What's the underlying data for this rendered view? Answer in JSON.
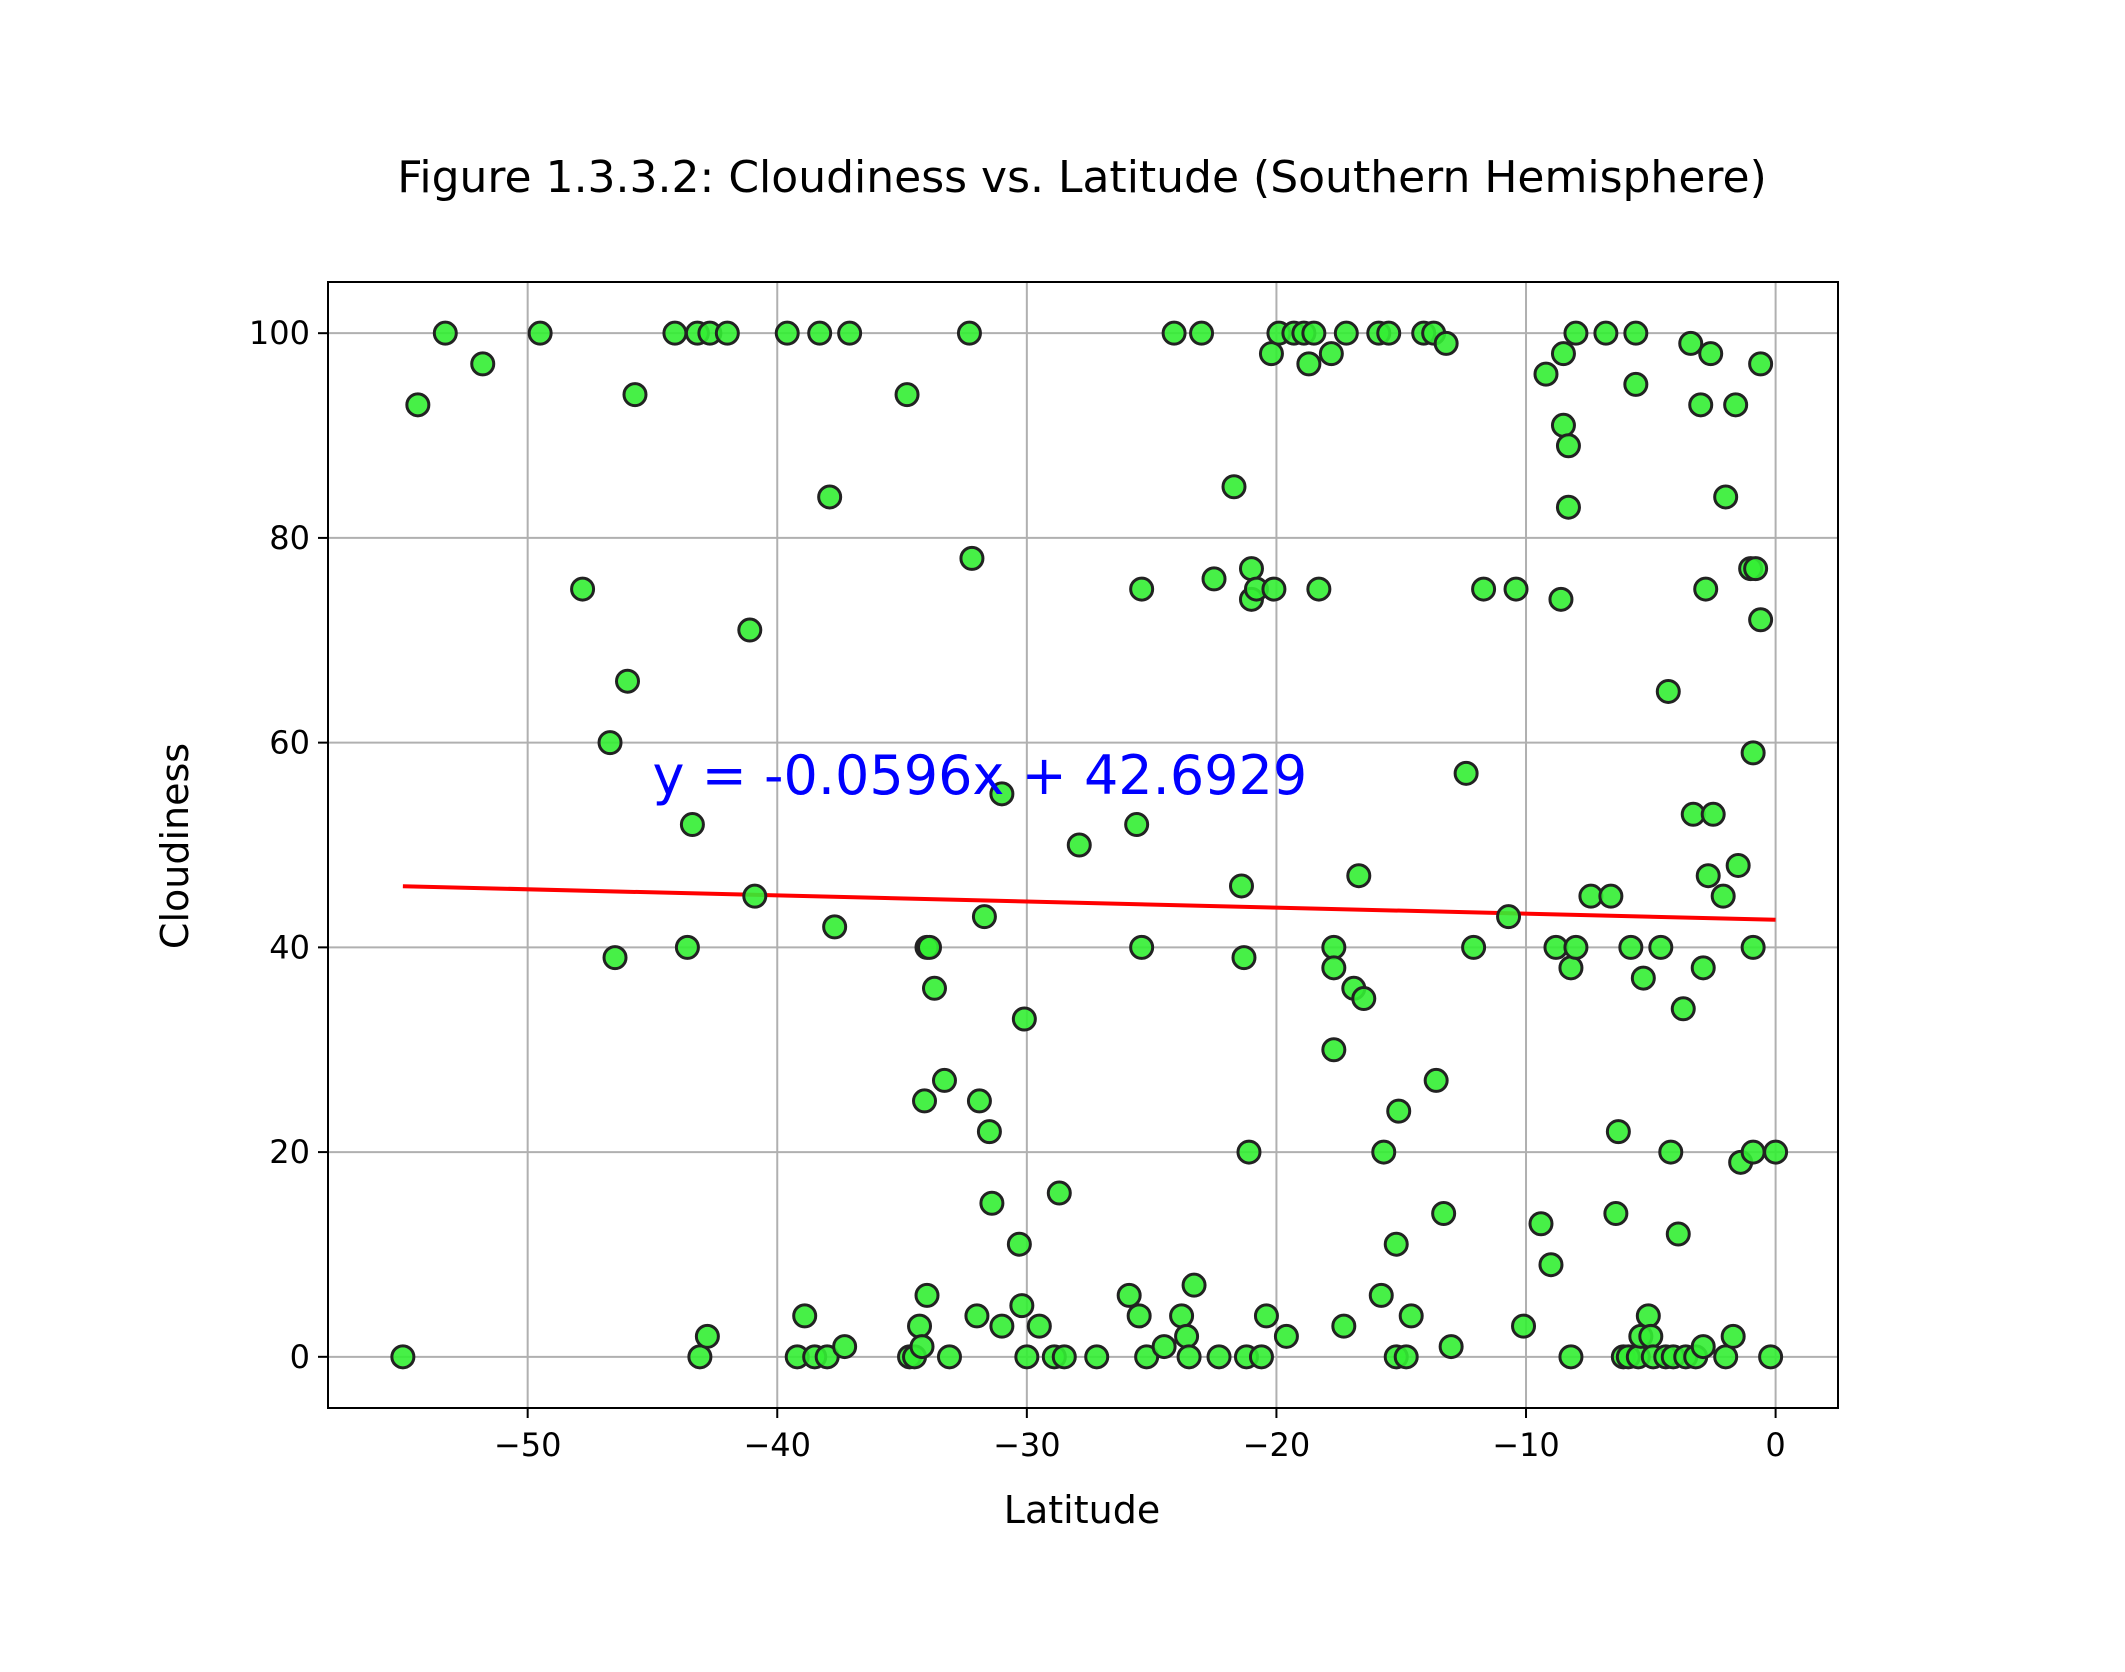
{
  "chart_data": {
    "type": "scatter",
    "title": "Figure 1.3.3.2: Cloudiness vs. Latitude (Southern Hemisphere)",
    "xlabel": "Latitude",
    "ylabel": "Cloudiness",
    "xlim": [
      -58,
      2.5
    ],
    "ylim": [
      -5,
      105
    ],
    "xticks": [
      -50,
      -40,
      -30,
      -20,
      -10,
      0
    ],
    "yticks": [
      0,
      20,
      40,
      60,
      80,
      100
    ],
    "xtick_labels": [
      "−50",
      "−40",
      "−30",
      "−20",
      "−10",
      "0"
    ],
    "ytick_labels": [
      "0",
      "20",
      "40",
      "60",
      "80",
      "100"
    ],
    "grid": true,
    "marker_color": "#33ee33",
    "marker_edge_color": "#222222",
    "regression": {
      "equation": "y = -0.0596x + 42.6929",
      "slope": -0.0596,
      "intercept": 42.6929,
      "x_range": [
        -55,
        0
      ],
      "line_color": "#ff0000",
      "text_color": "#0000ff",
      "text_anchor": [
        -45,
        55
      ]
    },
    "points": [
      [
        -55,
        0
      ],
      [
        -54.4,
        93
      ],
      [
        -53.3,
        100
      ],
      [
        -51.8,
        97
      ],
      [
        -49.5,
        100
      ],
      [
        -47.8,
        75
      ],
      [
        -46.7,
        60
      ],
      [
        -46.5,
        39
      ],
      [
        -46,
        66
      ],
      [
        -45.7,
        94
      ],
      [
        -44.1,
        100
      ],
      [
        -43.6,
        40
      ],
      [
        -43.4,
        52
      ],
      [
        -43.2,
        100
      ],
      [
        -43.1,
        0
      ],
      [
        -42.8,
        2
      ],
      [
        -42.7,
        100
      ],
      [
        -42,
        100
      ],
      [
        -41.1,
        71
      ],
      [
        -40.9,
        45
      ],
      [
        -39.6,
        100
      ],
      [
        -39.2,
        0
      ],
      [
        -38.9,
        4
      ],
      [
        -38.5,
        0
      ],
      [
        -38.3,
        100
      ],
      [
        -38,
        0
      ],
      [
        -37.9,
        84
      ],
      [
        -37.7,
        42
      ],
      [
        -37.3,
        1
      ],
      [
        -37.1,
        100
      ],
      [
        -34.8,
        94
      ],
      [
        -34.7,
        0
      ],
      [
        -34.5,
        0
      ],
      [
        -34.3,
        3
      ],
      [
        -34.2,
        1
      ],
      [
        -34.1,
        25
      ],
      [
        -34,
        6
      ],
      [
        -34,
        40
      ],
      [
        -33.9,
        40
      ],
      [
        -33.7,
        36
      ],
      [
        -33.3,
        27
      ],
      [
        -33.1,
        0
      ],
      [
        -32.3,
        100
      ],
      [
        -32.2,
        78
      ],
      [
        -32,
        4
      ],
      [
        -31.9,
        25
      ],
      [
        -31.7,
        43
      ],
      [
        -31.5,
        22
      ],
      [
        -31.4,
        15
      ],
      [
        -31,
        55
      ],
      [
        -31,
        3
      ],
      [
        -30.3,
        11
      ],
      [
        -30.2,
        5
      ],
      [
        -30.1,
        33
      ],
      [
        -30,
        0
      ],
      [
        -29.5,
        3
      ],
      [
        -28.9,
        0
      ],
      [
        -28.7,
        16
      ],
      [
        -28.5,
        0
      ],
      [
        -27.9,
        50
      ],
      [
        -27.2,
        0
      ],
      [
        -25.9,
        6
      ],
      [
        -25.6,
        52
      ],
      [
        -25.5,
        4
      ],
      [
        -25.4,
        75
      ],
      [
        -25.4,
        40
      ],
      [
        -25.2,
        0
      ],
      [
        -24.5,
        1
      ],
      [
        -24.1,
        100
      ],
      [
        -23.8,
        4
      ],
      [
        -23.6,
        2
      ],
      [
        -23.5,
        0
      ],
      [
        -23.3,
        7
      ],
      [
        -23,
        100
      ],
      [
        -22.5,
        76
      ],
      [
        -22.3,
        0
      ],
      [
        -21.7,
        85
      ],
      [
        -21.4,
        46
      ],
      [
        -21.3,
        39
      ],
      [
        -21.2,
        0
      ],
      [
        -21.1,
        20
      ],
      [
        -21,
        74
      ],
      [
        -21,
        77
      ],
      [
        -20.8,
        75
      ],
      [
        -20.6,
        0
      ],
      [
        -20.4,
        4
      ],
      [
        -20.2,
        98
      ],
      [
        -20.1,
        75
      ],
      [
        -19.9,
        100
      ],
      [
        -19.6,
        2
      ],
      [
        -19.3,
        100
      ],
      [
        -18.9,
        100
      ],
      [
        -18.7,
        97
      ],
      [
        -18.5,
        100
      ],
      [
        -18.3,
        75
      ],
      [
        -17.8,
        98
      ],
      [
        -17.7,
        40
      ],
      [
        -17.7,
        38
      ],
      [
        -17.7,
        30
      ],
      [
        -17.3,
        3
      ],
      [
        -17.2,
        100
      ],
      [
        -16.9,
        36
      ],
      [
        -16.7,
        47
      ],
      [
        -16.5,
        35
      ],
      [
        -15.9,
        100
      ],
      [
        -15.8,
        6
      ],
      [
        -15.7,
        20
      ],
      [
        -15.5,
        100
      ],
      [
        -15.2,
        0
      ],
      [
        -15.2,
        11
      ],
      [
        -15.1,
        24
      ],
      [
        -14.8,
        0
      ],
      [
        -14.6,
        4
      ],
      [
        -14.1,
        100
      ],
      [
        -13.7,
        100
      ],
      [
        -13.6,
        27
      ],
      [
        -13.3,
        14
      ],
      [
        -13.2,
        99
      ],
      [
        -13,
        1
      ],
      [
        -12.4,
        57
      ],
      [
        -12.1,
        40
      ],
      [
        -11.7,
        75
      ],
      [
        -10.7,
        43
      ],
      [
        -10.4,
        75
      ],
      [
        -10.1,
        3
      ],
      [
        -9.4,
        13
      ],
      [
        -9.2,
        96
      ],
      [
        -9,
        9
      ],
      [
        -8.8,
        40
      ],
      [
        -8.6,
        74
      ],
      [
        -8.5,
        98
      ],
      [
        -8.5,
        91
      ],
      [
        -8.3,
        89
      ],
      [
        -8.3,
        83
      ],
      [
        -8.2,
        38
      ],
      [
        -8.2,
        0
      ],
      [
        -8,
        40
      ],
      [
        -8,
        100
      ],
      [
        -7.4,
        45
      ],
      [
        -6.8,
        100
      ],
      [
        -6.6,
        45
      ],
      [
        -6.3,
        22
      ],
      [
        -6.4,
        14
      ],
      [
        -6.1,
        0
      ],
      [
        -5.9,
        0
      ],
      [
        -5.8,
        40
      ],
      [
        -5.6,
        95
      ],
      [
        -5.6,
        100
      ],
      [
        -5.5,
        0
      ],
      [
        -5.4,
        2
      ],
      [
        -5.3,
        37
      ],
      [
        -5.1,
        4
      ],
      [
        -5,
        2
      ],
      [
        -4.9,
        0
      ],
      [
        -4.6,
        40
      ],
      [
        -4.4,
        0
      ],
      [
        -4.3,
        65
      ],
      [
        -4.2,
        20
      ],
      [
        -4.1,
        0
      ],
      [
        -3.9,
        12
      ],
      [
        -3.7,
        34
      ],
      [
        -3.6,
        0
      ],
      [
        -3.4,
        99
      ],
      [
        -3.3,
        53
      ],
      [
        -3.2,
        0
      ],
      [
        -3,
        93
      ],
      [
        -2.9,
        38
      ],
      [
        -2.9,
        1
      ],
      [
        -2.8,
        75
      ],
      [
        -2.7,
        47
      ],
      [
        -2.6,
        98
      ],
      [
        -2.5,
        53
      ],
      [
        -2.1,
        45
      ],
      [
        -2,
        84
      ],
      [
        -2,
        0
      ],
      [
        -1.7,
        2
      ],
      [
        -1.6,
        93
      ],
      [
        -1.5,
        48
      ],
      [
        -1.4,
        19
      ],
      [
        -1,
        77
      ],
      [
        -0.9,
        40
      ],
      [
        -0.9,
        59
      ],
      [
        -0.9,
        20
      ],
      [
        -0.8,
        77
      ],
      [
        -0.6,
        72
      ],
      [
        -0.6,
        97
      ],
      [
        -0.2,
        0
      ],
      [
        0,
        20
      ]
    ]
  }
}
